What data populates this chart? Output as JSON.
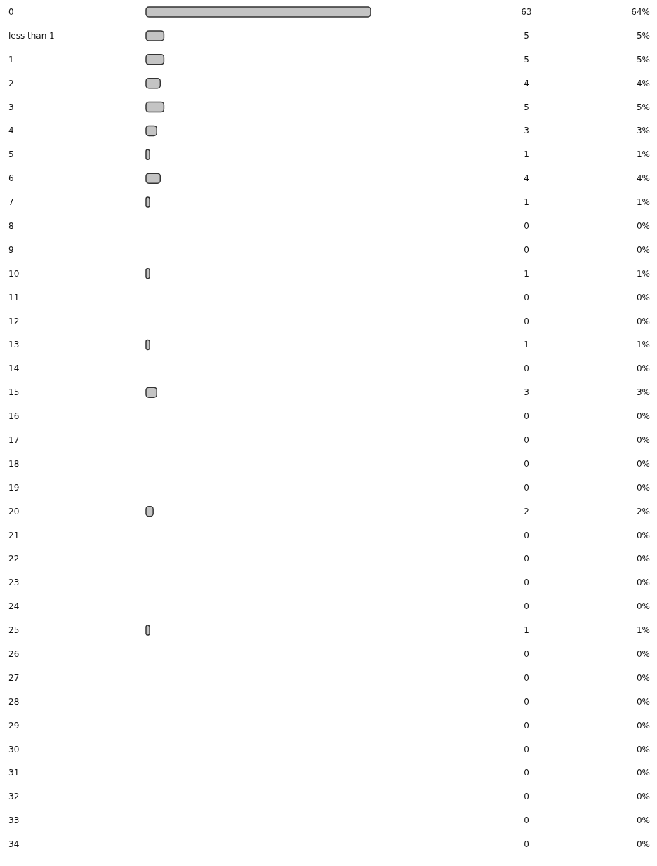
{
  "chart_data": {
    "type": "bar",
    "orientation": "horizontal",
    "categories": [
      "0",
      "less than 1",
      "1",
      "2",
      "3",
      "4",
      "5",
      "6",
      "7",
      "8",
      "9",
      "10",
      "11",
      "12",
      "13",
      "14",
      "15",
      "16",
      "17",
      "18",
      "19",
      "20",
      "21",
      "22",
      "23",
      "24",
      "25",
      "26",
      "27",
      "28",
      "29",
      "30",
      "31",
      "32",
      "33",
      "34"
    ],
    "values": [
      63,
      5,
      5,
      4,
      5,
      3,
      1,
      4,
      1,
      0,
      0,
      1,
      0,
      0,
      1,
      0,
      3,
      0,
      0,
      0,
      0,
      2,
      0,
      0,
      0,
      0,
      1,
      0,
      0,
      0,
      0,
      0,
      0,
      0,
      0,
      0
    ],
    "annotations": [
      "64%",
      "5%",
      "5%",
      "4%",
      "5%",
      "3%",
      "1%",
      "4%",
      "1%",
      "0%",
      "0%",
      "1%",
      "0%",
      "0%",
      "1%",
      "0%",
      "3%",
      "0%",
      "0%",
      "0%",
      "0%",
      "2%",
      "0%",
      "0%",
      "0%",
      "0%",
      "1%",
      "0%",
      "0%",
      "0%",
      "0%",
      "0%",
      "0%",
      "0%",
      "0%",
      "0%"
    ],
    "color": "#c4c4c4",
    "data_labels": true
  }
}
